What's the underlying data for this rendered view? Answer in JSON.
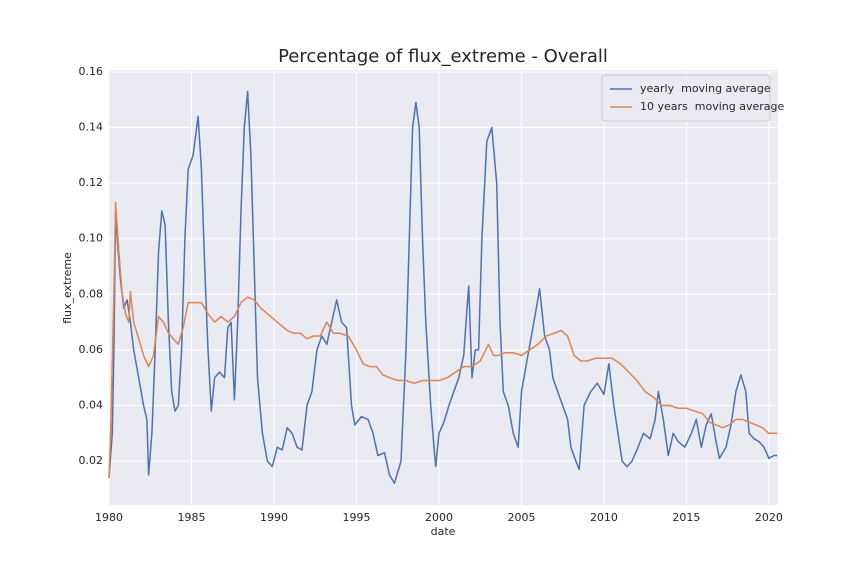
{
  "chart_data": {
    "type": "line",
    "title": "Percentage of flux_extreme - Overall",
    "xlabel": "date",
    "ylabel": "flux_extreme",
    "xlim": [
      1980,
      2020.55
    ],
    "ylim": [
      0.0042,
      0.1607
    ],
    "xticks": [
      1980,
      1985,
      1990,
      1995,
      2000,
      2005,
      2010,
      2015,
      2020
    ],
    "yticks": [
      0.02,
      0.04,
      0.06,
      0.08,
      {
        "value": 0.1,
        "label": "0.10"
      },
      0.12,
      0.14,
      0.16
    ],
    "grid": true,
    "legend": "upper right",
    "background": "#eaeaf2",
    "series": [
      {
        "name": "yearly  moving average",
        "color": "#4c72b0",
        "x": [
          1980.0,
          1980.2,
          1980.3,
          1980.4,
          1980.5,
          1980.7,
          1980.9,
          1981.1,
          1981.3,
          1981.5,
          1981.8,
          1982.1,
          1982.3,
          1982.4,
          1982.6,
          1982.8,
          1983.0,
          1983.2,
          1983.4,
          1983.6,
          1983.8,
          1984.0,
          1984.2,
          1984.4,
          1984.6,
          1984.8,
          1985.1,
          1985.4,
          1985.6,
          1985.8,
          1986.0,
          1986.2,
          1986.4,
          1986.7,
          1987.0,
          1987.2,
          1987.4,
          1987.6,
          1987.8,
          1988.0,
          1988.2,
          1988.4,
          1988.6,
          1988.8,
          1989.0,
          1989.3,
          1989.6,
          1989.9,
          1990.2,
          1990.5,
          1990.8,
          1991.1,
          1991.4,
          1991.7,
          1992.0,
          1992.3,
          1992.6,
          1992.9,
          1993.2,
          1993.5,
          1993.8,
          1994.1,
          1994.4,
          1994.7,
          1994.9,
          1995.3,
          1995.7,
          1996.0,
          1996.3,
          1996.7,
          1997.0,
          1997.3,
          1997.7,
          1998.0,
          1998.2,
          1998.4,
          1998.6,
          1998.8,
          1999.0,
          1999.2,
          1999.5,
          1999.7,
          1999.8,
          2000.0,
          2000.3,
          2000.6,
          2000.9,
          2001.2,
          2001.5,
          2001.7,
          2001.8,
          2002.0,
          2002.2,
          2002.4,
          2002.6,
          2002.9,
          2003.2,
          2003.5,
          2003.7,
          2003.9,
          2004.2,
          2004.5,
          2004.8,
          2005.0,
          2005.3,
          2005.6,
          2005.9,
          2006.1,
          2006.4,
          2006.7,
          2006.9,
          2007.2,
          2007.5,
          2007.8,
          2008.0,
          2008.3,
          2008.5,
          2008.8,
          2009.2,
          2009.6,
          2010.0,
          2010.3,
          2010.6,
          2010.9,
          2011.1,
          2011.4,
          2011.7,
          2012.0,
          2012.4,
          2012.8,
          2013.1,
          2013.3,
          2013.6,
          2013.9,
          2014.2,
          2014.5,
          2014.9,
          2015.3,
          2015.6,
          2015.9,
          2016.2,
          2016.5,
          2016.8,
          2017.0,
          2017.4,
          2017.7,
          2018.0,
          2018.3,
          2018.6,
          2018.8,
          2019.1,
          2019.4,
          2019.7,
          2020.0,
          2020.3,
          2020.5
        ],
        "values": [
          0.014,
          0.03,
          0.06,
          0.11,
          0.1,
          0.085,
          0.075,
          0.078,
          0.07,
          0.06,
          0.05,
          0.04,
          0.035,
          0.015,
          0.03,
          0.06,
          0.095,
          0.11,
          0.105,
          0.07,
          0.045,
          0.038,
          0.04,
          0.06,
          0.1,
          0.125,
          0.13,
          0.144,
          0.125,
          0.09,
          0.06,
          0.038,
          0.05,
          0.052,
          0.05,
          0.068,
          0.07,
          0.042,
          0.07,
          0.11,
          0.14,
          0.153,
          0.13,
          0.09,
          0.05,
          0.03,
          0.02,
          0.018,
          0.025,
          0.024,
          0.032,
          0.03,
          0.025,
          0.024,
          0.04,
          0.045,
          0.06,
          0.065,
          0.062,
          0.07,
          0.078,
          0.07,
          0.068,
          0.04,
          0.033,
          0.036,
          0.035,
          0.03,
          0.022,
          0.023,
          0.015,
          0.012,
          0.02,
          0.06,
          0.1,
          0.14,
          0.149,
          0.14,
          0.1,
          0.07,
          0.04,
          0.025,
          0.018,
          0.03,
          0.034,
          0.04,
          0.045,
          0.05,
          0.058,
          0.075,
          0.083,
          0.05,
          0.06,
          0.06,
          0.1,
          0.135,
          0.14,
          0.12,
          0.07,
          0.045,
          0.04,
          0.03,
          0.025,
          0.045,
          0.055,
          0.065,
          0.075,
          0.082,
          0.065,
          0.06,
          0.05,
          0.045,
          0.04,
          0.035,
          0.025,
          0.02,
          0.017,
          0.04,
          0.045,
          0.048,
          0.044,
          0.055,
          0.04,
          0.028,
          0.02,
          0.018,
          0.02,
          0.024,
          0.03,
          0.028,
          0.035,
          0.045,
          0.035,
          0.022,
          0.03,
          0.027,
          0.025,
          0.03,
          0.035,
          0.025,
          0.033,
          0.037,
          0.027,
          0.021,
          0.025,
          0.033,
          0.045,
          0.051,
          0.045,
          0.03,
          0.028,
          0.027,
          0.025,
          0.021,
          0.022,
          0.022
        ]
      },
      {
        "name": "10 years  moving average",
        "color": "#dd8452",
        "x": [
          1980.0,
          1980.1,
          1980.3,
          1980.4,
          1980.6,
          1980.8,
          1981.0,
          1981.2,
          1981.3,
          1981.5,
          1981.8,
          1982.1,
          1982.4,
          1982.7,
          1983.0,
          1983.3,
          1983.6,
          1983.9,
          1984.2,
          1984.5,
          1984.8,
          1985.2,
          1985.6,
          1986.0,
          1986.4,
          1986.8,
          1987.2,
          1987.6,
          1988.0,
          1988.4,
          1988.8,
          1989.2,
          1989.6,
          1990.0,
          1990.4,
          1990.8,
          1991.2,
          1991.6,
          1992.0,
          1992.4,
          1992.8,
          1993.2,
          1993.6,
          1994.0,
          1994.5,
          1995.0,
          1995.4,
          1995.8,
          1996.2,
          1996.6,
          1997.0,
          1997.5,
          1998.0,
          1998.5,
          1999.0,
          1999.5,
          2000.0,
          2000.5,
          2001.0,
          2001.5,
          2002.0,
          2002.5,
          2003.0,
          2003.3,
          2003.6,
          2004.0,
          2004.5,
          2005.0,
          2005.5,
          2006.0,
          2006.5,
          2007.0,
          2007.4,
          2007.8,
          2008.2,
          2008.6,
          2009.0,
          2009.5,
          2010.0,
          2010.5,
          2011.0,
          2011.5,
          2012.0,
          2012.5,
          2013.0,
          2013.5,
          2014.0,
          2014.5,
          2015.0,
          2015.5,
          2016.0,
          2016.4,
          2016.8,
          2017.2,
          2017.6,
          2018.0,
          2018.4,
          2018.8,
          2019.2,
          2019.6,
          2020.0,
          2020.5
        ],
        "values": [
          0.014,
          0.03,
          0.08,
          0.113,
          0.095,
          0.08,
          0.073,
          0.07,
          0.081,
          0.07,
          0.064,
          0.058,
          0.054,
          0.058,
          0.072,
          0.07,
          0.066,
          0.064,
          0.062,
          0.068,
          0.077,
          0.077,
          0.077,
          0.073,
          0.07,
          0.072,
          0.07,
          0.072,
          0.077,
          0.079,
          0.078,
          0.075,
          0.073,
          0.071,
          0.069,
          0.067,
          0.066,
          0.066,
          0.064,
          0.065,
          0.065,
          0.07,
          0.066,
          0.066,
          0.065,
          0.06,
          0.055,
          0.054,
          0.054,
          0.051,
          0.05,
          0.049,
          0.049,
          0.048,
          0.049,
          0.049,
          0.049,
          0.05,
          0.052,
          0.054,
          0.054,
          0.056,
          0.062,
          0.058,
          0.058,
          0.059,
          0.059,
          0.058,
          0.06,
          0.062,
          0.065,
          0.066,
          0.067,
          0.065,
          0.058,
          0.056,
          0.056,
          0.057,
          0.057,
          0.057,
          0.055,
          0.052,
          0.049,
          0.045,
          0.043,
          0.04,
          0.04,
          0.039,
          0.039,
          0.038,
          0.037,
          0.034,
          0.033,
          0.032,
          0.033,
          0.035,
          0.035,
          0.034,
          0.033,
          0.032,
          0.03,
          0.03
        ]
      }
    ]
  }
}
